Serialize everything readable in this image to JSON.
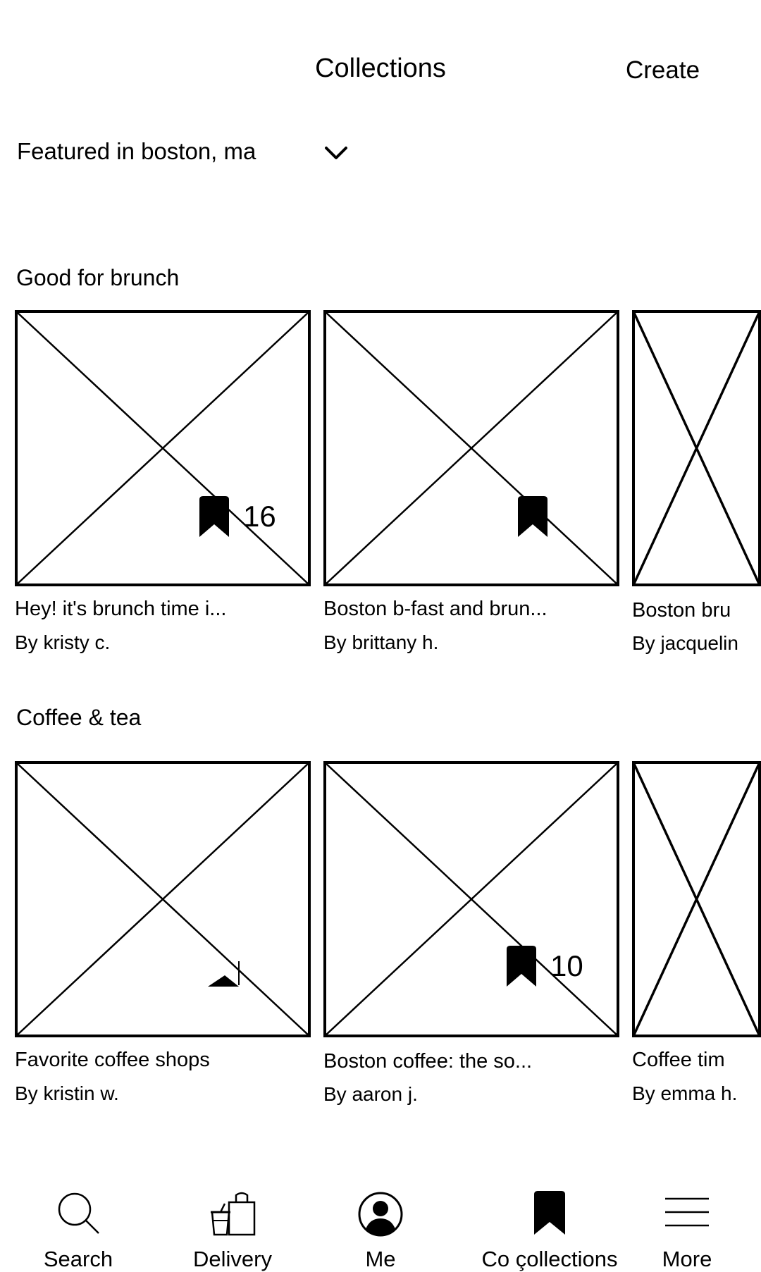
{
  "header": {
    "title": "Collections",
    "create_label": "Create"
  },
  "location_selector": {
    "label": "Featured in boston, ma",
    "icon": "chevron-down-icon"
  },
  "sections": [
    {
      "title": "Good for brunch",
      "cards": [
        {
          "title": "Hey! it's brunch time i...",
          "author": "By kristy c.",
          "bookmark_count": "16"
        },
        {
          "title": "Boston b-fast and brun...",
          "author": "By brittany h."
        },
        {
          "title": "Boston bru",
          "author": "By jacquelin"
        }
      ]
    },
    {
      "title": "Coffee & tea",
      "cards": [
        {
          "title": "Favorite coffee shops",
          "author": "By kristin w."
        },
        {
          "title": "Boston coffee: the so...",
          "author": "By aaron j.",
          "bookmark_count": "10"
        },
        {
          "title": "Coffee tim",
          "author": "By emma h."
        }
      ]
    }
  ],
  "nav": {
    "items": [
      {
        "label": "Search",
        "icon": "search-icon"
      },
      {
        "label": "Delivery",
        "icon": "delivery-bag-icon"
      },
      {
        "label": "Me",
        "icon": "user-profile-icon"
      },
      {
        "label": "Co çollections",
        "icon": "bookmark-icon"
      },
      {
        "label": "More",
        "icon": "menu-icon"
      }
    ]
  }
}
